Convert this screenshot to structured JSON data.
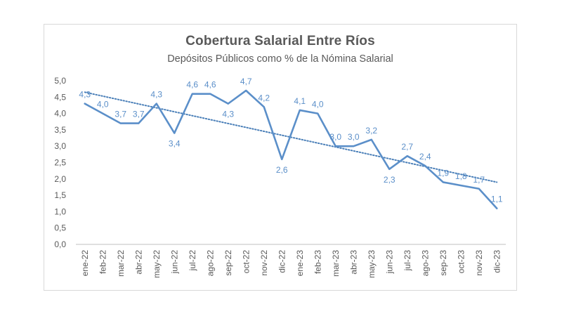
{
  "chart_data": {
    "type": "line",
    "title": "Cobertura Salarial Entre Ríos",
    "subtitle": "Depósitos Públicos como % de la Nómina Salarial",
    "xlabel": "",
    "ylabel": "",
    "categories": [
      "ene-22",
      "feb-22",
      "mar-22",
      "abr-22",
      "may-22",
      "jun-22",
      "jul-22",
      "ago-22",
      "sep-22",
      "oct-22",
      "nov-22",
      "dic-22",
      "ene-23",
      "feb-23",
      "mar-23",
      "abr-23",
      "may-23",
      "jun-23",
      "jul-23",
      "ago-23",
      "sep-23",
      "oct-23",
      "nov-23",
      "dic-23"
    ],
    "series": [
      {
        "values": [
          4.3,
          4.0,
          3.7,
          3.7,
          4.3,
          3.4,
          4.6,
          4.6,
          4.3,
          4.7,
          4.2,
          2.6,
          4.1,
          4.0,
          3.0,
          3.0,
          3.2,
          2.3,
          2.7,
          2.4,
          1.9,
          1.8,
          1.7,
          1.1
        ],
        "labels": [
          "4,3",
          "4,0",
          "3,7",
          "3,7",
          "4,3",
          "3,4",
          "4,6",
          "4,6",
          "4,3",
          "4,7",
          "4,2",
          "2,6",
          "4,1",
          "4,0",
          "3,0",
          "3,0",
          "3,2",
          "2,3",
          "2,7",
          "2,4",
          "1,9",
          "1,8",
          "1,7",
          "1,1"
        ],
        "color": "#5b8fc9"
      }
    ],
    "trendline": {
      "type": "linear",
      "style": "dotted",
      "color": "#4a7fb8",
      "start": 4.65,
      "end": 1.9
    },
    "ylim": [
      0,
      5
    ],
    "yticks": [
      "0,0",
      "0,5",
      "1,0",
      "1,5",
      "2,0",
      "2,5",
      "3,0",
      "3,5",
      "4,0",
      "4,5",
      "5,0"
    ],
    "ytick_values": [
      0,
      0.5,
      1,
      1.5,
      2,
      2.5,
      3,
      3.5,
      4,
      4.5,
      5
    ],
    "grid": false,
    "legend": "none",
    "colors": {
      "line": "#5b8fc9",
      "text": "#595959",
      "axis": "#bfbfbf"
    }
  }
}
